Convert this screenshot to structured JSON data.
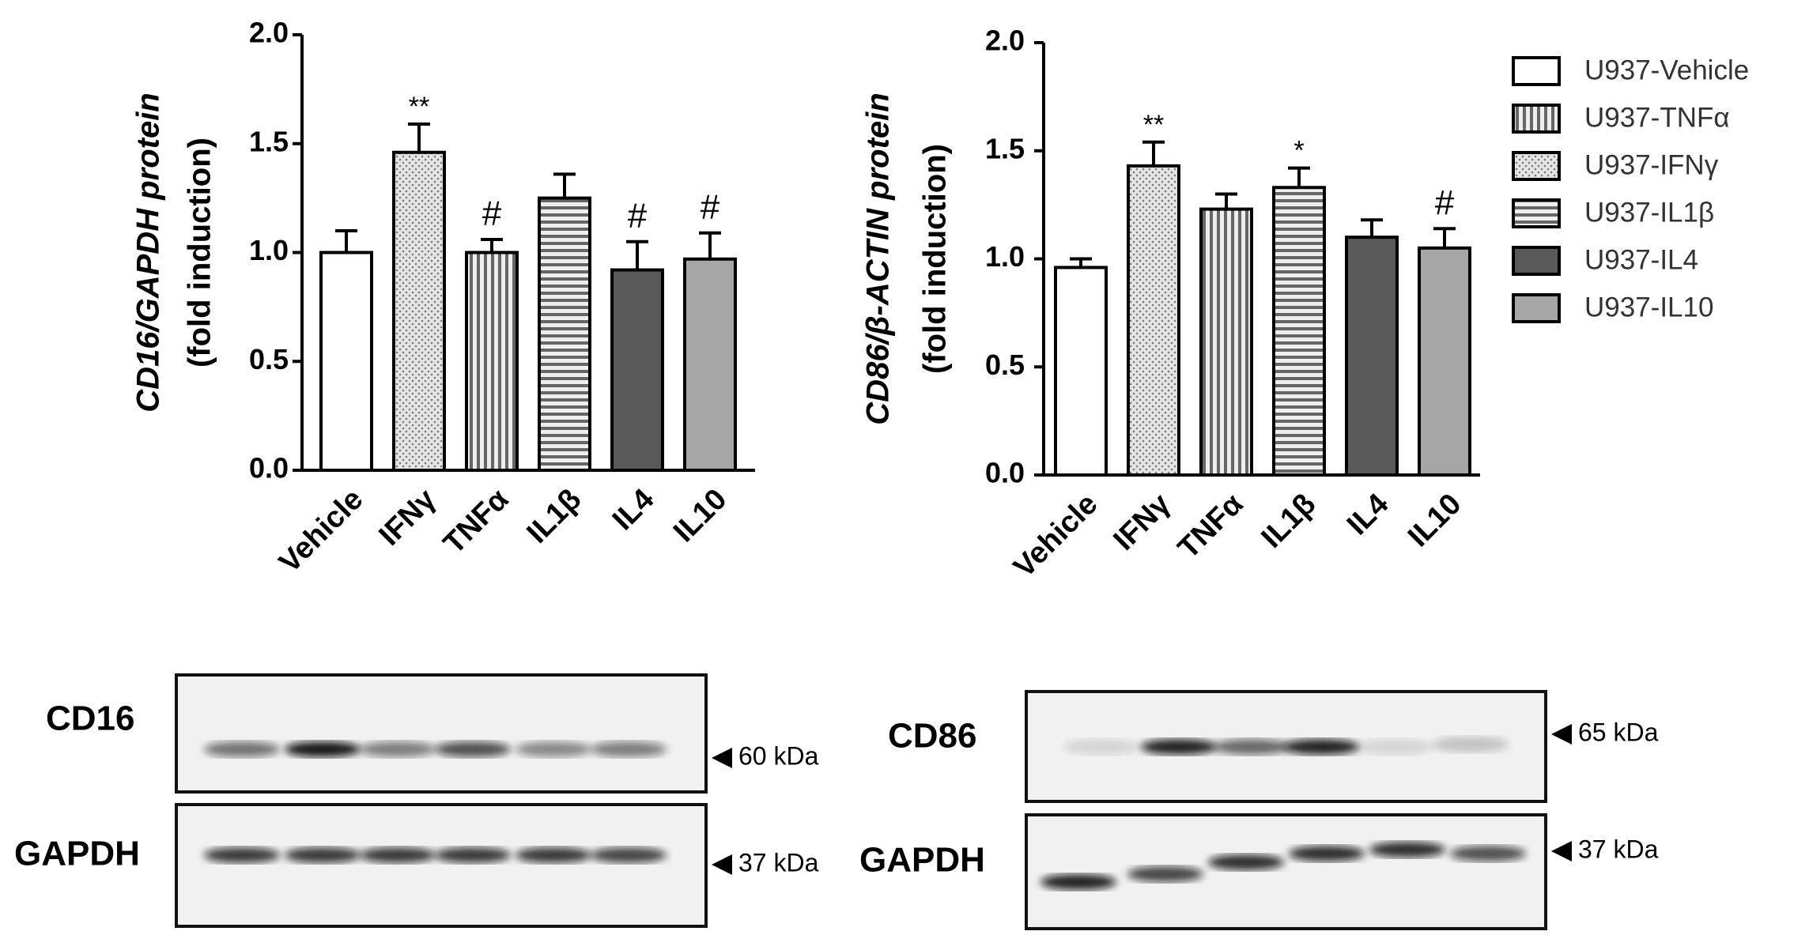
{
  "chart_data": [
    {
      "type": "bar",
      "ylabel": [
        "CD16/GAPDH protein",
        "(fold induction)"
      ],
      "categories": [
        "Vehicle",
        "IFNγ",
        "TNFα",
        "IL1β",
        "IL4",
        "IL10"
      ],
      "values": [
        1.0,
        1.46,
        1.0,
        1.25,
        0.92,
        0.97
      ],
      "errors": [
        0.1,
        0.13,
        0.06,
        0.11,
        0.13,
        0.12
      ],
      "annotations": [
        null,
        "**",
        "#",
        null,
        "#",
        "#"
      ],
      "patterns": [
        "white",
        "dots",
        "vertical",
        "horizontal",
        "dark",
        "light"
      ],
      "ylim": [
        0,
        2
      ],
      "yticks": [
        {
          "value": 0,
          "label": "0.0"
        },
        0.5,
        {
          "value": 1,
          "label": "1.0"
        },
        1.5,
        {
          "value": 2,
          "label": "2.0"
        }
      ]
    },
    {
      "type": "bar",
      "ylabel": [
        "CD86/β-ACTIN protein",
        "(fold induction)"
      ],
      "categories": [
        "Vehicle",
        "IFNγ",
        "TNFα",
        "IL1β",
        "IL4",
        "IL10"
      ],
      "values": [
        0.96,
        1.43,
        1.23,
        1.33,
        1.1,
        1.05
      ],
      "errors": [
        0.04,
        0.11,
        0.07,
        0.09,
        0.08,
        0.09
      ],
      "annotations": [
        null,
        "**",
        null,
        "*",
        null,
        "#"
      ],
      "patterns": [
        "white",
        "dots",
        "vertical",
        "horizontal",
        "dark",
        "light"
      ],
      "ylim": [
        0,
        2
      ],
      "yticks": [
        {
          "value": 0,
          "label": "0.0"
        },
        0.5,
        {
          "value": 1,
          "label": "1.0"
        },
        1.5,
        {
          "value": 2,
          "label": "2.0"
        }
      ]
    }
  ],
  "legend": [
    {
      "name": "U937-Vehicle",
      "pattern": "white"
    },
    {
      "name": "U937-TNFα",
      "pattern": "vertical"
    },
    {
      "name": "U937-IFNγ",
      "pattern": "dots"
    },
    {
      "name": "U937-IL1β",
      "pattern": "horizontal"
    },
    {
      "name": "U937-IL4",
      "pattern": "dark"
    },
    {
      "name": "U937-IL10",
      "pattern": "light"
    }
  ],
  "blots": [
    {
      "labels": [
        "CD16",
        "GAPDH"
      ],
      "sizes": [
        "60 kDa",
        "37 kDa"
      ]
    },
    {
      "labels": [
        "CD86",
        "GAPDH"
      ],
      "sizes": [
        "65 kDa",
        "37 kDa"
      ]
    }
  ]
}
